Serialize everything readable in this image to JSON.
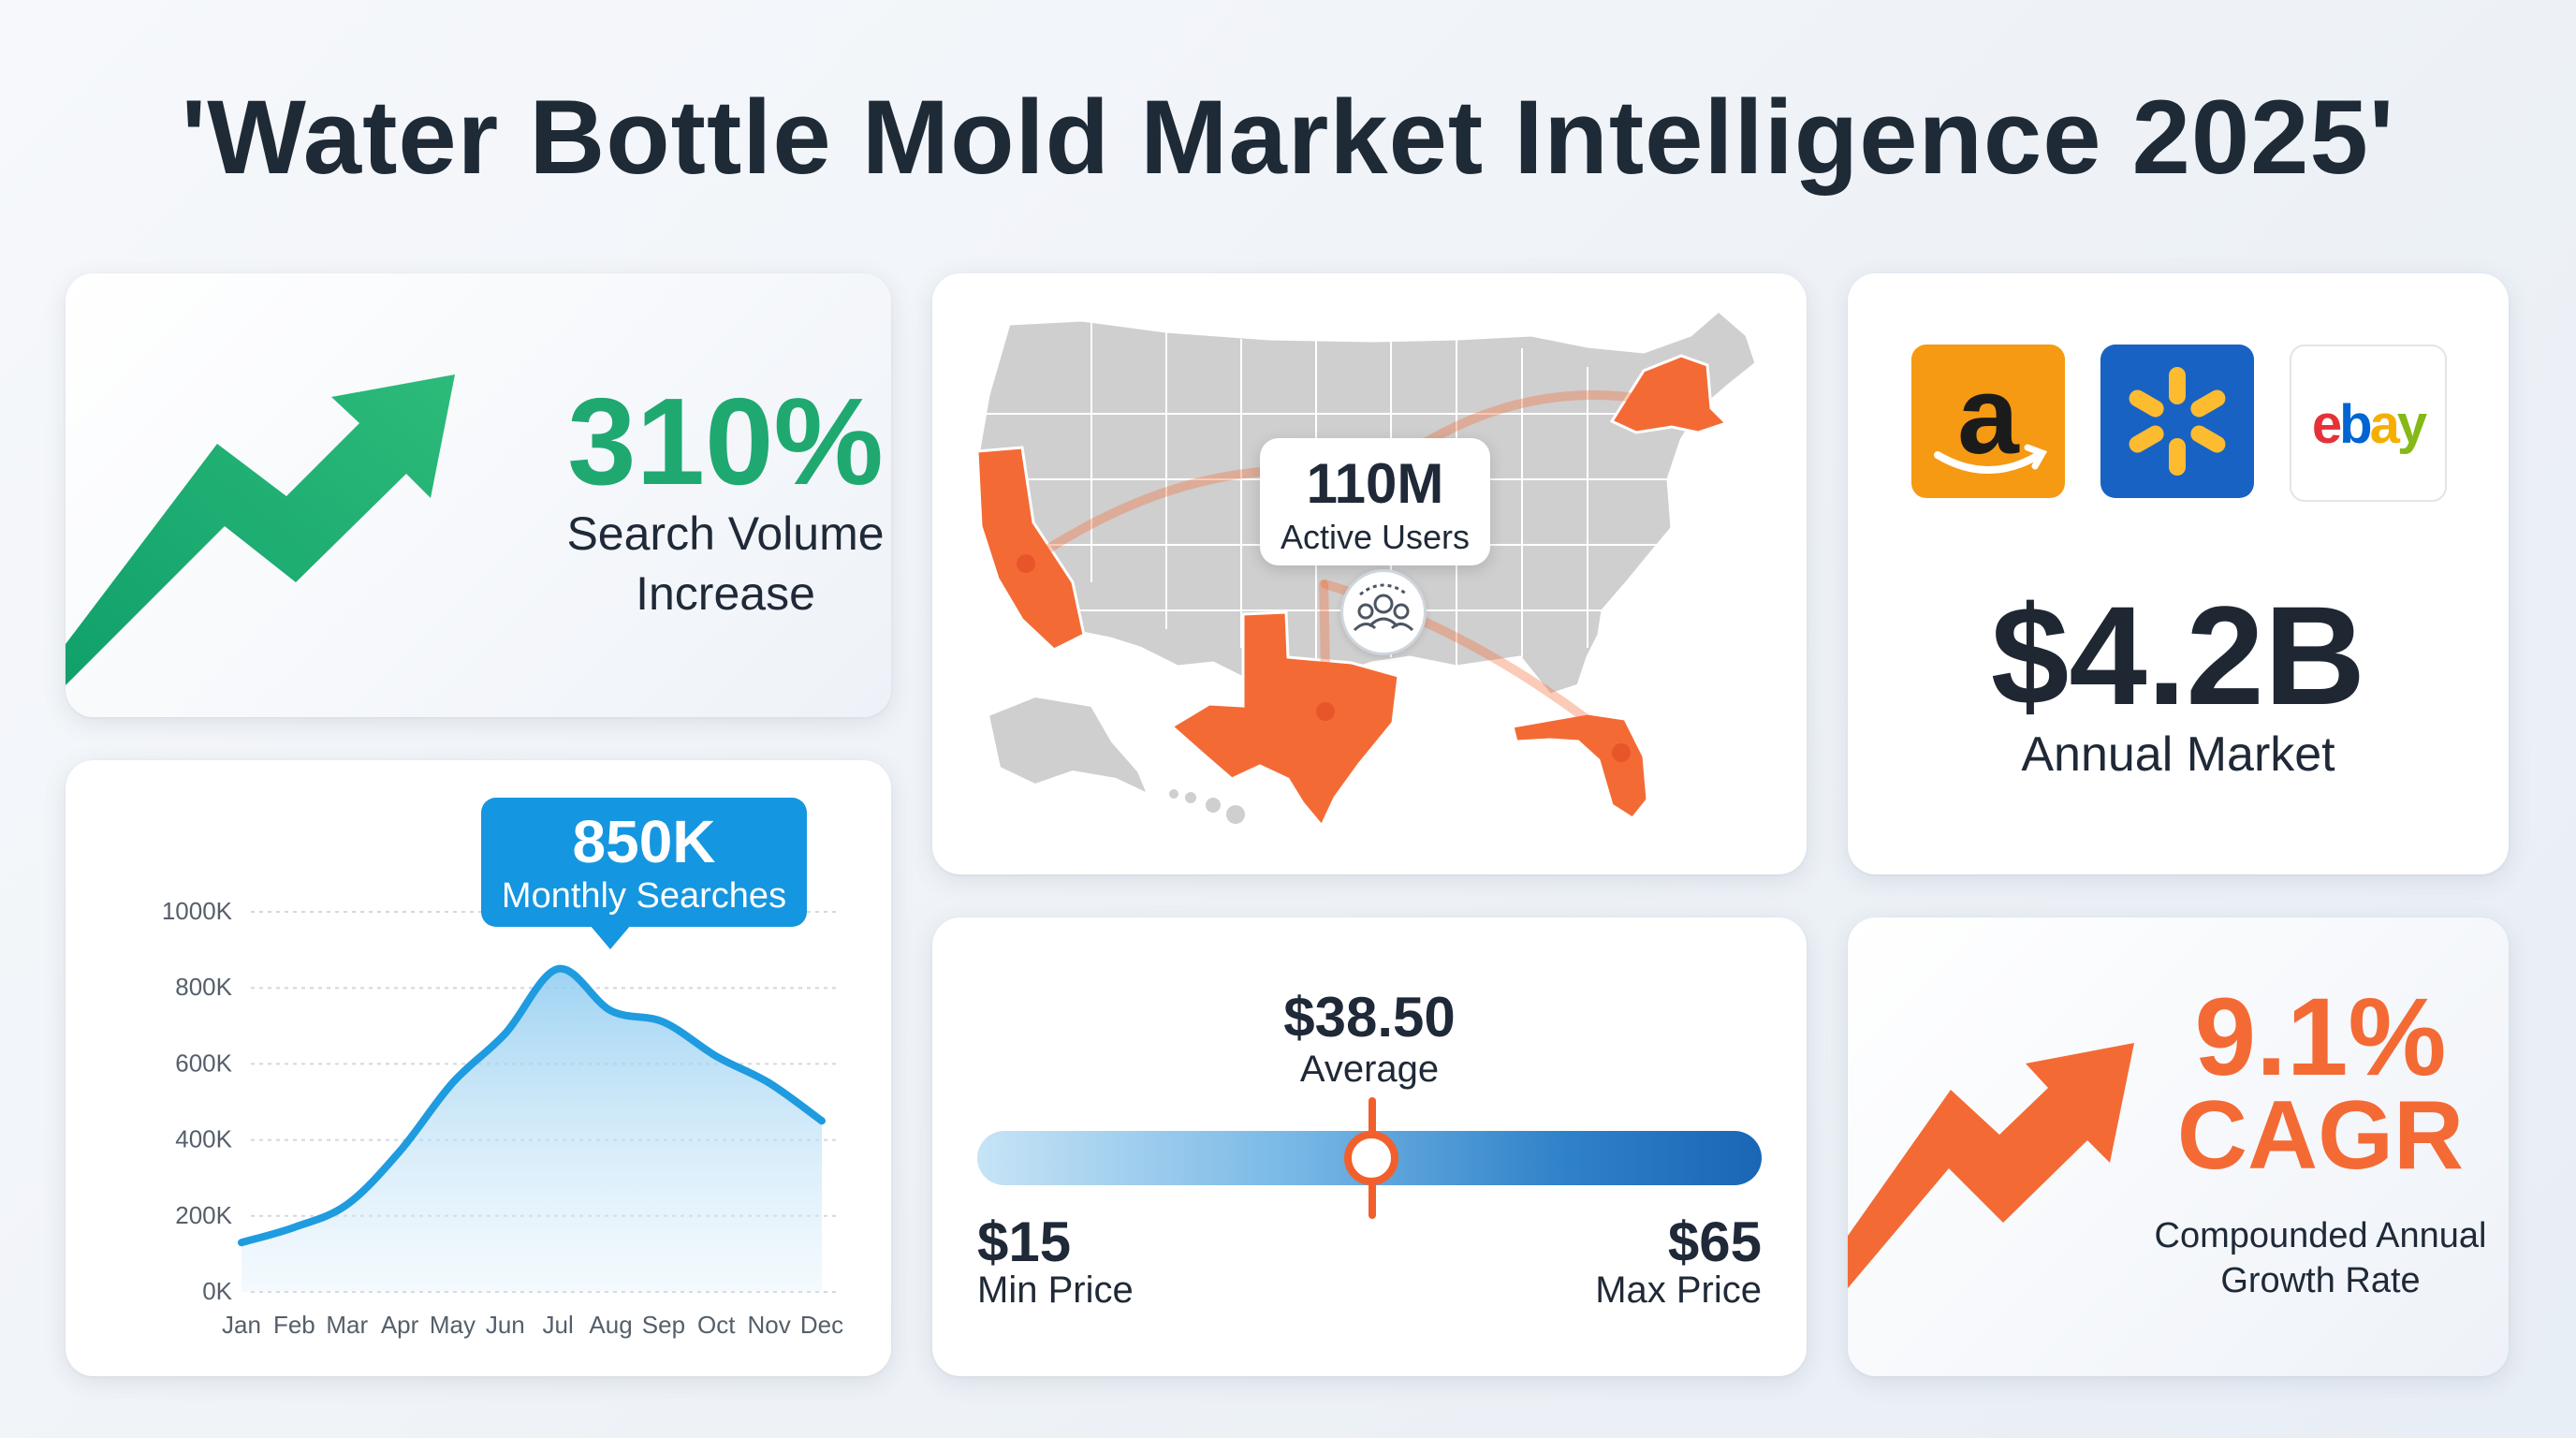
{
  "title": "'Water Bottle Mold Market Intelligence 2025'",
  "search_volume": {
    "value": "310%",
    "label": "Search Volume Increase",
    "color": "#1fa971",
    "icon": "trend-up-arrow-icon"
  },
  "map": {
    "callout_value": "110M",
    "callout_label": "Active Users",
    "icon": "users-group-icon",
    "highlight_color": "#f46a35",
    "highlighted_states": [
      "California",
      "Texas",
      "Florida",
      "New York"
    ]
  },
  "market": {
    "logos": [
      {
        "name": "amazon",
        "text": "a",
        "color": "#f59a12"
      },
      {
        "name": "walmart",
        "text": "walmart-spark",
        "color": "#1862c4"
      },
      {
        "name": "ebay",
        "text": "ebay",
        "letters": [
          "e",
          "b",
          "a",
          "y"
        ],
        "colors": [
          "#e53238",
          "#0064d2",
          "#f5af02",
          "#86b817"
        ]
      }
    ],
    "value": "$4.2B",
    "label": "Annual Market"
  },
  "chart_data": {
    "type": "area",
    "title": "",
    "xlabel": "",
    "ylabel": "",
    "categories": [
      "Jan",
      "Feb",
      "Mar",
      "Apr",
      "May",
      "Jun",
      "Jul",
      "Aug",
      "Sep",
      "Oct",
      "Nov",
      "Dec"
    ],
    "values": [
      130,
      170,
      230,
      370,
      550,
      680,
      850,
      740,
      710,
      620,
      550,
      450
    ],
    "ylim": [
      0,
      1000
    ],
    "yticks": [
      0,
      200,
      400,
      600,
      800,
      1000
    ],
    "ytick_labels": [
      "0K",
      "200K",
      "400K",
      "600K",
      "800K",
      "1000K"
    ],
    "grid": true,
    "line_color": "#1f9be0",
    "callout": {
      "value": "850K",
      "label": "Monthly Searches",
      "category": "Jul"
    }
  },
  "price": {
    "average_value": "$38.50",
    "average_label": "Average",
    "min_value": "$15",
    "min_label": "Min Price",
    "max_value": "$65",
    "max_label": "Max Price",
    "average_position_fraction": 0.47,
    "marker_color": "#f1602c"
  },
  "cagr": {
    "value": "9.1%",
    "sub": "CAGR",
    "label": "Compounded Annual Growth Rate",
    "color": "#f46a35",
    "icon": "trend-up-arrow-icon"
  }
}
